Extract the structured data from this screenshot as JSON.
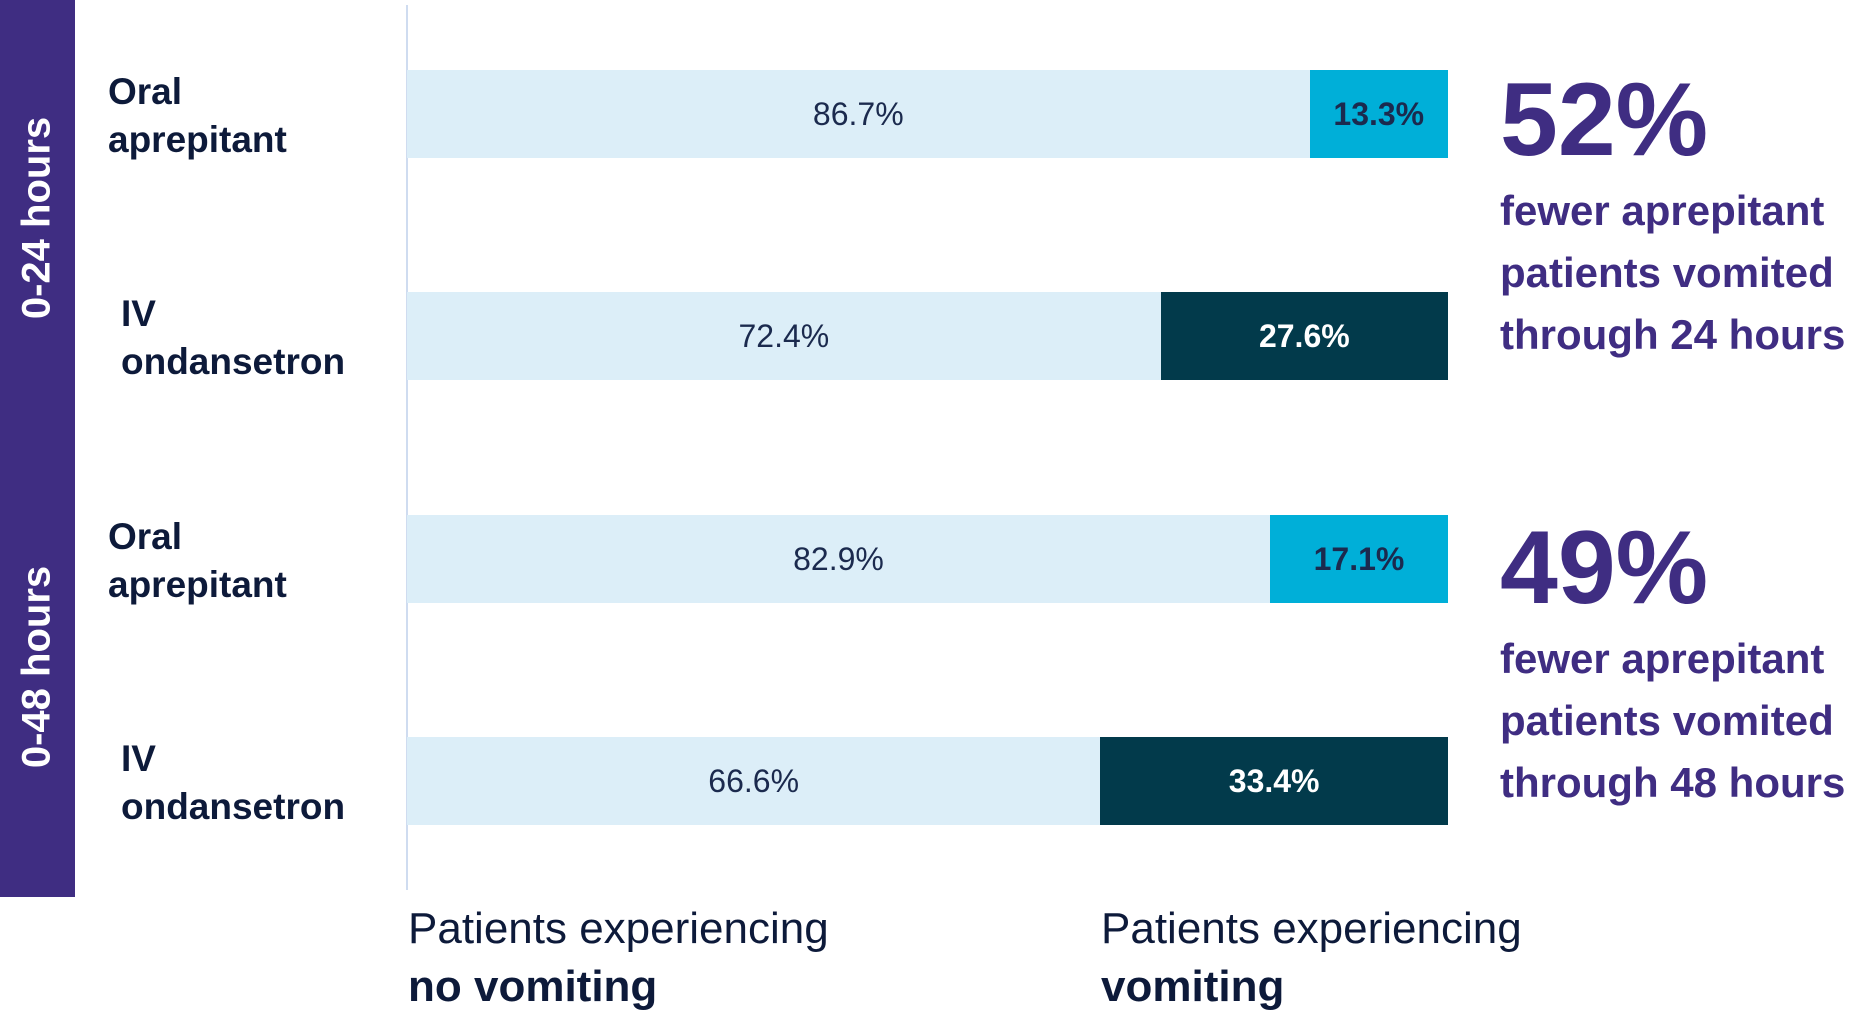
{
  "chart_data": {
    "type": "bar",
    "stacked": true,
    "orientation": "horizontal",
    "groups": [
      {
        "label": "0-24 hours",
        "rows": [
          {
            "label_line1": "Oral",
            "label_line2": "aprepitant",
            "no_vomiting": 86.7,
            "vomiting": 13.3,
            "no_label": "86.7%",
            "yes_label": "13.3%"
          },
          {
            "label_line1": "IV",
            "label_line2": "ondansetron",
            "no_vomiting": 72.4,
            "vomiting": 27.6,
            "no_label": "72.4%",
            "yes_label": "27.6%"
          }
        ]
      },
      {
        "label": "0-48 hours",
        "rows": [
          {
            "label_line1": "Oral",
            "label_line2": "aprepitant",
            "no_vomiting": 82.9,
            "vomiting": 17.1,
            "no_label": "82.9%",
            "yes_label": "17.1%"
          },
          {
            "label_line1": "IV",
            "label_line2": "ondansetron",
            "no_vomiting": 66.6,
            "vomiting": 33.4,
            "no_label": "66.6%",
            "yes_label": "33.4%"
          }
        ]
      }
    ],
    "xlim": [
      0,
      100
    ],
    "legend": {
      "no_vomiting_line1": "Patients experiencing",
      "no_vomiting_line2": "no vomiting",
      "vomiting_line1": "Patients experiencing",
      "vomiting_line2": "vomiting"
    },
    "callouts": [
      {
        "value": "52%",
        "line1": "fewer aprepitant",
        "line2": "patients vomited",
        "line3": "through 24 hours"
      },
      {
        "value": "49%",
        "line1": "fewer aprepitant",
        "line2": "patients vomited",
        "line3": "through 48 hours"
      }
    ]
  },
  "colors": {
    "band": "#3f2d82",
    "no_vomiting": "#dceef8",
    "aprepitant_vomiting": "#00afd8",
    "ondansetron_vomiting": "#023a4b",
    "aprepitant_text": "#1b2a4e",
    "ondansetron_text": "#ffffff"
  }
}
